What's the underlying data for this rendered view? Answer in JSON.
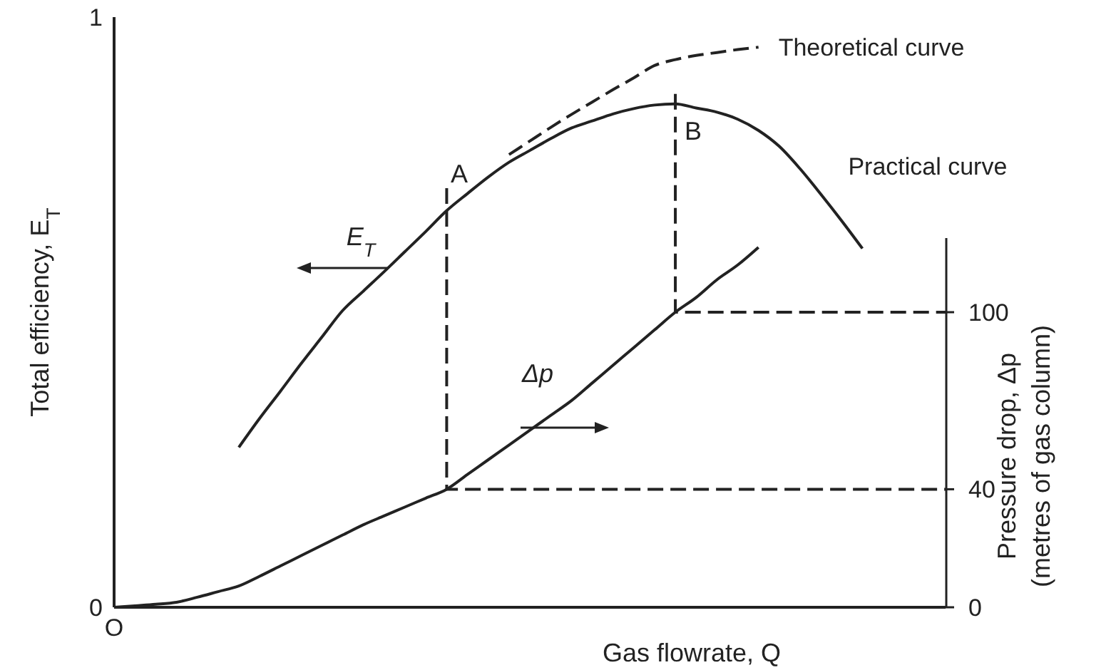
{
  "chart_data": {
    "type": "line",
    "xlabel": "Gas flowrate, Q",
    "ylabel": "Total efficiency, E$_{T}$",
    "y2label": "Pressure drop, Δp\n(metres of gas column)",
    "categories": [
      "O",
      null,
      null,
      null,
      null,
      null,
      null,
      null,
      null,
      null,
      null,
      null,
      null,
      null,
      null,
      null,
      null,
      null,
      null,
      null,
      null,
      null,
      null,
      null,
      null,
      null,
      null,
      null,
      null,
      null,
      null,
      null,
      null,
      null,
      null,
      null,
      null,
      null,
      null,
      null,
      null
    ],
    "ylim": [
      0,
      1
    ],
    "yticks": [
      0,
      1
    ],
    "y2lim": [
      0,
      200
    ],
    "y2ticks": [
      0,
      40,
      100
    ],
    "legend": false,
    "grid": false,
    "marker": "none",
    "series": [
      {
        "name": "Theoretical curve",
        "color": "#222222",
        "line_style": "dashed",
        "values": [
          null,
          null,
          null,
          null,
          null,
          null,
          null,
          null,
          null,
          null,
          null,
          null,
          null,
          null,
          null,
          null,
          null,
          null,
          null,
          0.767,
          0.79,
          0.813,
          0.835,
          0.856,
          0.877,
          0.897,
          0.918,
          0.928,
          0.935,
          0.94,
          0.945,
          0.949,
          null,
          null,
          null,
          null,
          null,
          null,
          null,
          null,
          null
        ]
      },
      {
        "name": "Practical curve",
        "color": "#222222",
        "line_style": "solid",
        "values": [
          null,
          null,
          null,
          null,
          null,
          null,
          0.271,
          0.32,
          0.366,
          0.413,
          0.458,
          0.503,
          0.536,
          0.569,
          0.603,
          0.637,
          0.672,
          0.701,
          0.729,
          0.754,
          0.774,
          0.794,
          0.812,
          0.824,
          0.836,
          0.845,
          0.851,
          0.853,
          0.846,
          0.839,
          0.827,
          0.808,
          0.781,
          0.743,
          0.7,
          0.655,
          0.608,
          null,
          null,
          null,
          null
        ]
      },
      {
        "color": "#222222",
        "line_style": "solid",
        "axis": "y2",
        "values": [
          0,
          0.5,
          1,
          1.7,
          3.4,
          5.3,
          7.2,
          10.5,
          14,
          17.5,
          21,
          24.5,
          28,
          31,
          34,
          37,
          40,
          45,
          50,
          55,
          60,
          65,
          70,
          76,
          82,
          88,
          94,
          100,
          105,
          111,
          116,
          122,
          null,
          null,
          null,
          null,
          null,
          null,
          null,
          null,
          null
        ]
      },
      {
        "type": "step",
        "color": "#222222",
        "line_style": "dashed",
        "axis": "y2",
        "values": [
          null,
          null,
          null,
          null,
          null,
          null,
          null,
          null,
          null,
          null,
          null,
          null,
          null,
          null,
          null,
          null,
          142,
          40,
          40,
          40,
          40,
          40,
          40,
          40,
          40,
          40,
          40,
          40,
          40,
          40,
          40,
          40,
          40,
          40,
          40,
          40,
          40,
          40,
          40,
          40,
          40
        ]
      },
      {
        "type": "step",
        "color": "#222222",
        "line_style": "dashed",
        "axis": "y2",
        "values": [
          null,
          null,
          null,
          null,
          null,
          null,
          null,
          null,
          null,
          null,
          null,
          null,
          null,
          null,
          null,
          null,
          null,
          null,
          null,
          null,
          null,
          null,
          null,
          null,
          null,
          null,
          null,
          174,
          100,
          100,
          100,
          100,
          100,
          100,
          100,
          100,
          100,
          100,
          100,
          100,
          100
        ]
      }
    ],
    "annotations": [
      "A",
      "B",
      "E$_{T}$",
      "Δp"
    ]
  }
}
